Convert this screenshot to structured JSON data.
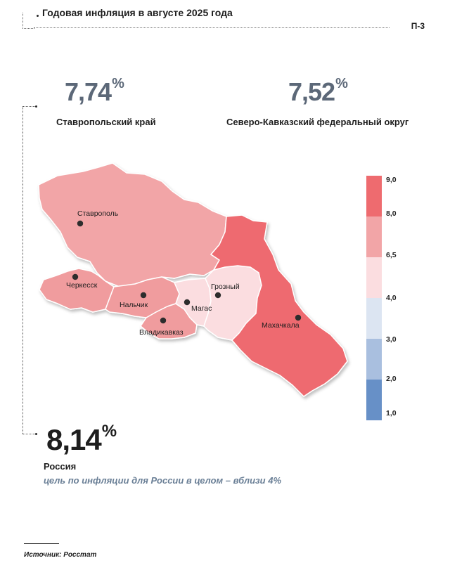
{
  "header": {
    "title": "Годовая инфляция в августе 2025 года",
    "page_code": "П-3"
  },
  "stats": {
    "stavropol": {
      "value": "7,74",
      "unit": "%",
      "label": "Ставропольский край"
    },
    "district": {
      "value": "7,52",
      "unit": "%",
      "label": "Северо-Кавказский федеральный округ"
    },
    "russia": {
      "value": "8,14",
      "unit": "%",
      "label": "Россия",
      "note": "цель по инфляции для России в целом – вблизи 4%"
    }
  },
  "map": {
    "cities": {
      "stavropol": "Ставрополь",
      "cherkessk": "Черкесск",
      "nalchik": "Нальчик",
      "magas": "Магас",
      "grozny": "Грозный",
      "vladikavkaz": "Владикавказ",
      "makhachkala": "Махачкала"
    },
    "region_colors": {
      "stavropol_krai": "#f2a5a7",
      "karachay_cherkessia": "#f09c9e",
      "kabardino_balkaria": "#f09c9e",
      "north_ossetia": "#f09c9e",
      "ingushetia": "#fbdde0",
      "chechnya": "#fbdde0",
      "dagestan": "#ee6b6f"
    }
  },
  "legend": {
    "labels": [
      "9,0",
      "8,0",
      "6,5",
      "4,0",
      "3,0",
      "2,0",
      "1,0"
    ],
    "colors": [
      "#ee6b6f",
      "#f2a5a7",
      "#fbdde0",
      "#dce5f2",
      "#a9bfdf",
      "#6790c7"
    ]
  },
  "source": "Источник: Росстат"
}
